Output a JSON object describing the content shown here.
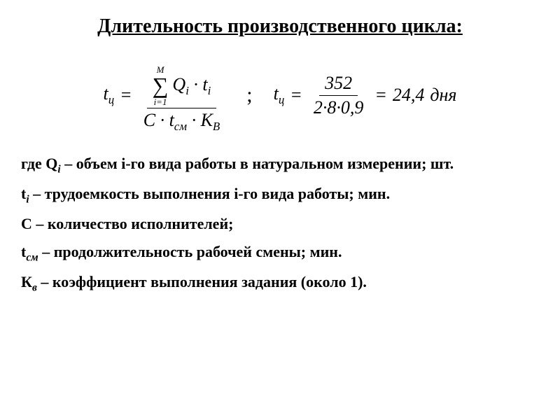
{
  "title": "Длительность производственного цикла:",
  "formula1": {
    "lhs_var": "t",
    "lhs_sub": "ц",
    "sum_upper": "M",
    "sum_lower": "i=1",
    "sum_term_Q": "Q",
    "sum_term_Q_sub": "i",
    "sum_term_t": "t",
    "sum_term_t_sub": "i",
    "den_C": "C",
    "den_t": "t",
    "den_t_sub": "см",
    "den_K": "K",
    "den_K_sub": "В",
    "dot": "·"
  },
  "separator": ";",
  "formula2": {
    "lhs_var": "t",
    "lhs_sub": "ц",
    "num": "352",
    "den": "2·8·0,9",
    "result": "24,4",
    "unit": "дня"
  },
  "defs": {
    "intro": "где  ",
    "Q_var": "Q",
    "Q_sub": "i",
    "Q_text": " – объем i-го вида работы в натуральном измерении; шт.",
    "t_var": "t",
    "t_sub": "i",
    "t_text": " – трудоемкость выполнения i-го вида работы; мин.",
    "C_var": "C",
    "C_text": " – количество исполнителей;",
    "tsm_var": "t",
    "tsm_sub": "см",
    "tsm_text": " – продолжительность рабочей смены; мин.",
    "K_var": "К",
    "K_sub": "в",
    "K_text": " – коэффициент выполнения задания (около 1)."
  }
}
